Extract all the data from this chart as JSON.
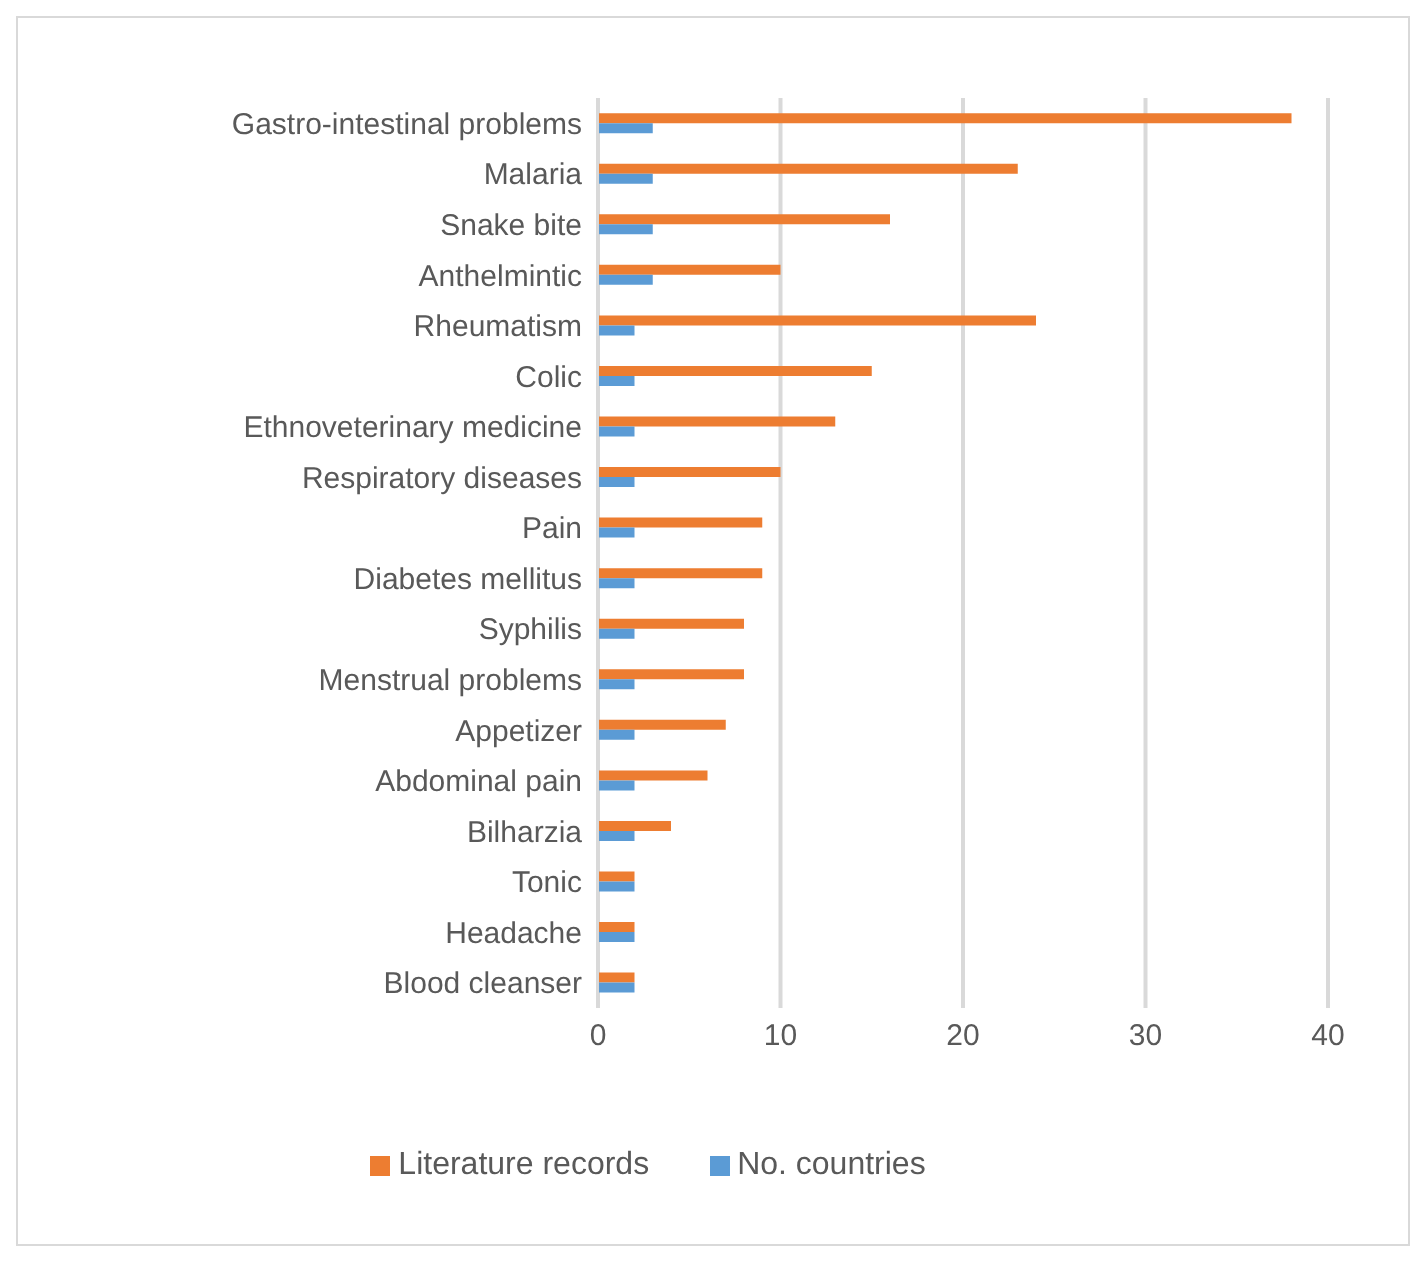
{
  "chart_data": {
    "type": "bar",
    "orientation": "horizontal",
    "categories": [
      "Gastro-intestinal problems",
      "Malaria",
      "Snake bite",
      "Anthelmintic",
      "Rheumatism",
      "Colic",
      "Ethnoveterinary medicine",
      "Respiratory diseases",
      "Pain",
      "Diabetes mellitus",
      "Syphilis",
      "Menstrual problems",
      "Appetizer",
      "Abdominal pain",
      "Bilharzia",
      "Tonic",
      "Headache",
      "Blood cleanser"
    ],
    "series": [
      {
        "name": "Literature records",
        "color": "#ed7d31",
        "values": [
          38,
          23,
          16,
          10,
          24,
          15,
          13,
          10,
          9,
          9,
          8,
          8,
          7,
          6,
          4,
          2,
          2,
          2
        ]
      },
      {
        "name": "No. countries",
        "color": "#5b9bd5",
        "values": [
          3,
          3,
          3,
          3,
          2,
          2,
          2,
          2,
          2,
          2,
          2,
          2,
          2,
          2,
          2,
          2,
          2,
          2
        ]
      }
    ],
    "xlim": [
      0,
      40
    ],
    "xticks": [
      0,
      10,
      20,
      30,
      40
    ],
    "grid": "x",
    "legend": "bottom"
  }
}
